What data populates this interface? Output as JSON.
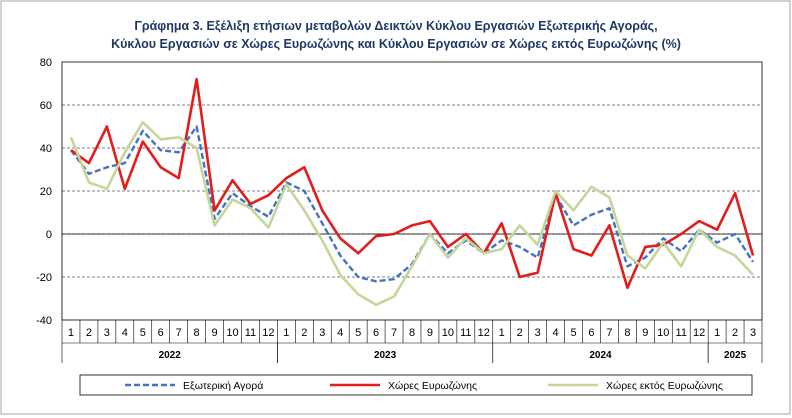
{
  "chart_data": {
    "type": "line",
    "title_line1": "Γράφημα 3. Εξέλιξη  ετήσιων μεταβολών Δεικτών Κύκλου Εργασιών Εξωτερικής Αγοράς,",
    "title_line2": "Κύκλου Εργασιών σε Χώρες Ευρωζώνης και Κύκλου Εργασιών σε Χώρες εκτός Ευρωζώνης (%)",
    "ylim": [
      -40,
      80
    ],
    "yticks": [
      -40,
      -20,
      0,
      20,
      40,
      60,
      80
    ],
    "months": [
      "1",
      "2",
      "3",
      "4",
      "5",
      "6",
      "7",
      "8",
      "9",
      "10",
      "11",
      "12",
      "1",
      "2",
      "3",
      "4",
      "5",
      "6",
      "7",
      "8",
      "9",
      "10",
      "11",
      "12",
      "1",
      "2",
      "3",
      "4",
      "5",
      "6",
      "7",
      "8",
      "9",
      "10",
      "11",
      "12",
      "1",
      "2",
      "3"
    ],
    "years": [
      {
        "label": "2022",
        "start": 0,
        "count": 12
      },
      {
        "label": "2023",
        "start": 12,
        "count": 12
      },
      {
        "label": "2024",
        "start": 24,
        "count": 12
      },
      {
        "label": "2025",
        "start": 36,
        "count": 3
      }
    ],
    "grid": true,
    "legend_position": "bottom",
    "series": [
      {
        "name": "Εξωτερική Αγορά",
        "color": "#4472c4",
        "style": "dashed",
        "values": [
          39,
          28,
          31,
          33,
          48,
          39,
          38,
          50,
          7,
          19,
          13,
          8,
          24,
          20,
          5,
          -10,
          -20,
          -22,
          -21,
          -14,
          0,
          -9,
          -3,
          -9,
          -3,
          -6,
          -11,
          18,
          4,
          9,
          12,
          -15,
          -11,
          -2,
          -8,
          2,
          -4,
          0,
          -13
        ]
      },
      {
        "name": "Χώρες Ευρωζώνης",
        "color": "#e31c1c",
        "style": "solid",
        "values": [
          39,
          33,
          50,
          21,
          43,
          31,
          26,
          72,
          11,
          25,
          14,
          18,
          26,
          31,
          11,
          -2,
          -9,
          -1,
          0,
          4,
          6,
          -6,
          0,
          -9,
          5,
          -20,
          -18,
          19,
          -7,
          -10,
          4,
          -25,
          -6,
          -5,
          0,
          6,
          2,
          19,
          -10
        ]
      },
      {
        "name": "Χώρες εκτός Ευρωζώνης",
        "color": "#c4d79b",
        "style": "solid",
        "values": [
          45,
          24,
          21,
          38,
          52,
          44,
          45,
          40,
          4,
          16,
          12,
          3,
          23,
          11,
          -3,
          -19,
          -28,
          -33,
          -29,
          -15,
          0,
          -11,
          -2,
          -9,
          -7,
          4,
          -5,
          20,
          11,
          22,
          17,
          -10,
          -16,
          -4,
          -15,
          2,
          -6,
          -10,
          -19
        ]
      }
    ]
  }
}
